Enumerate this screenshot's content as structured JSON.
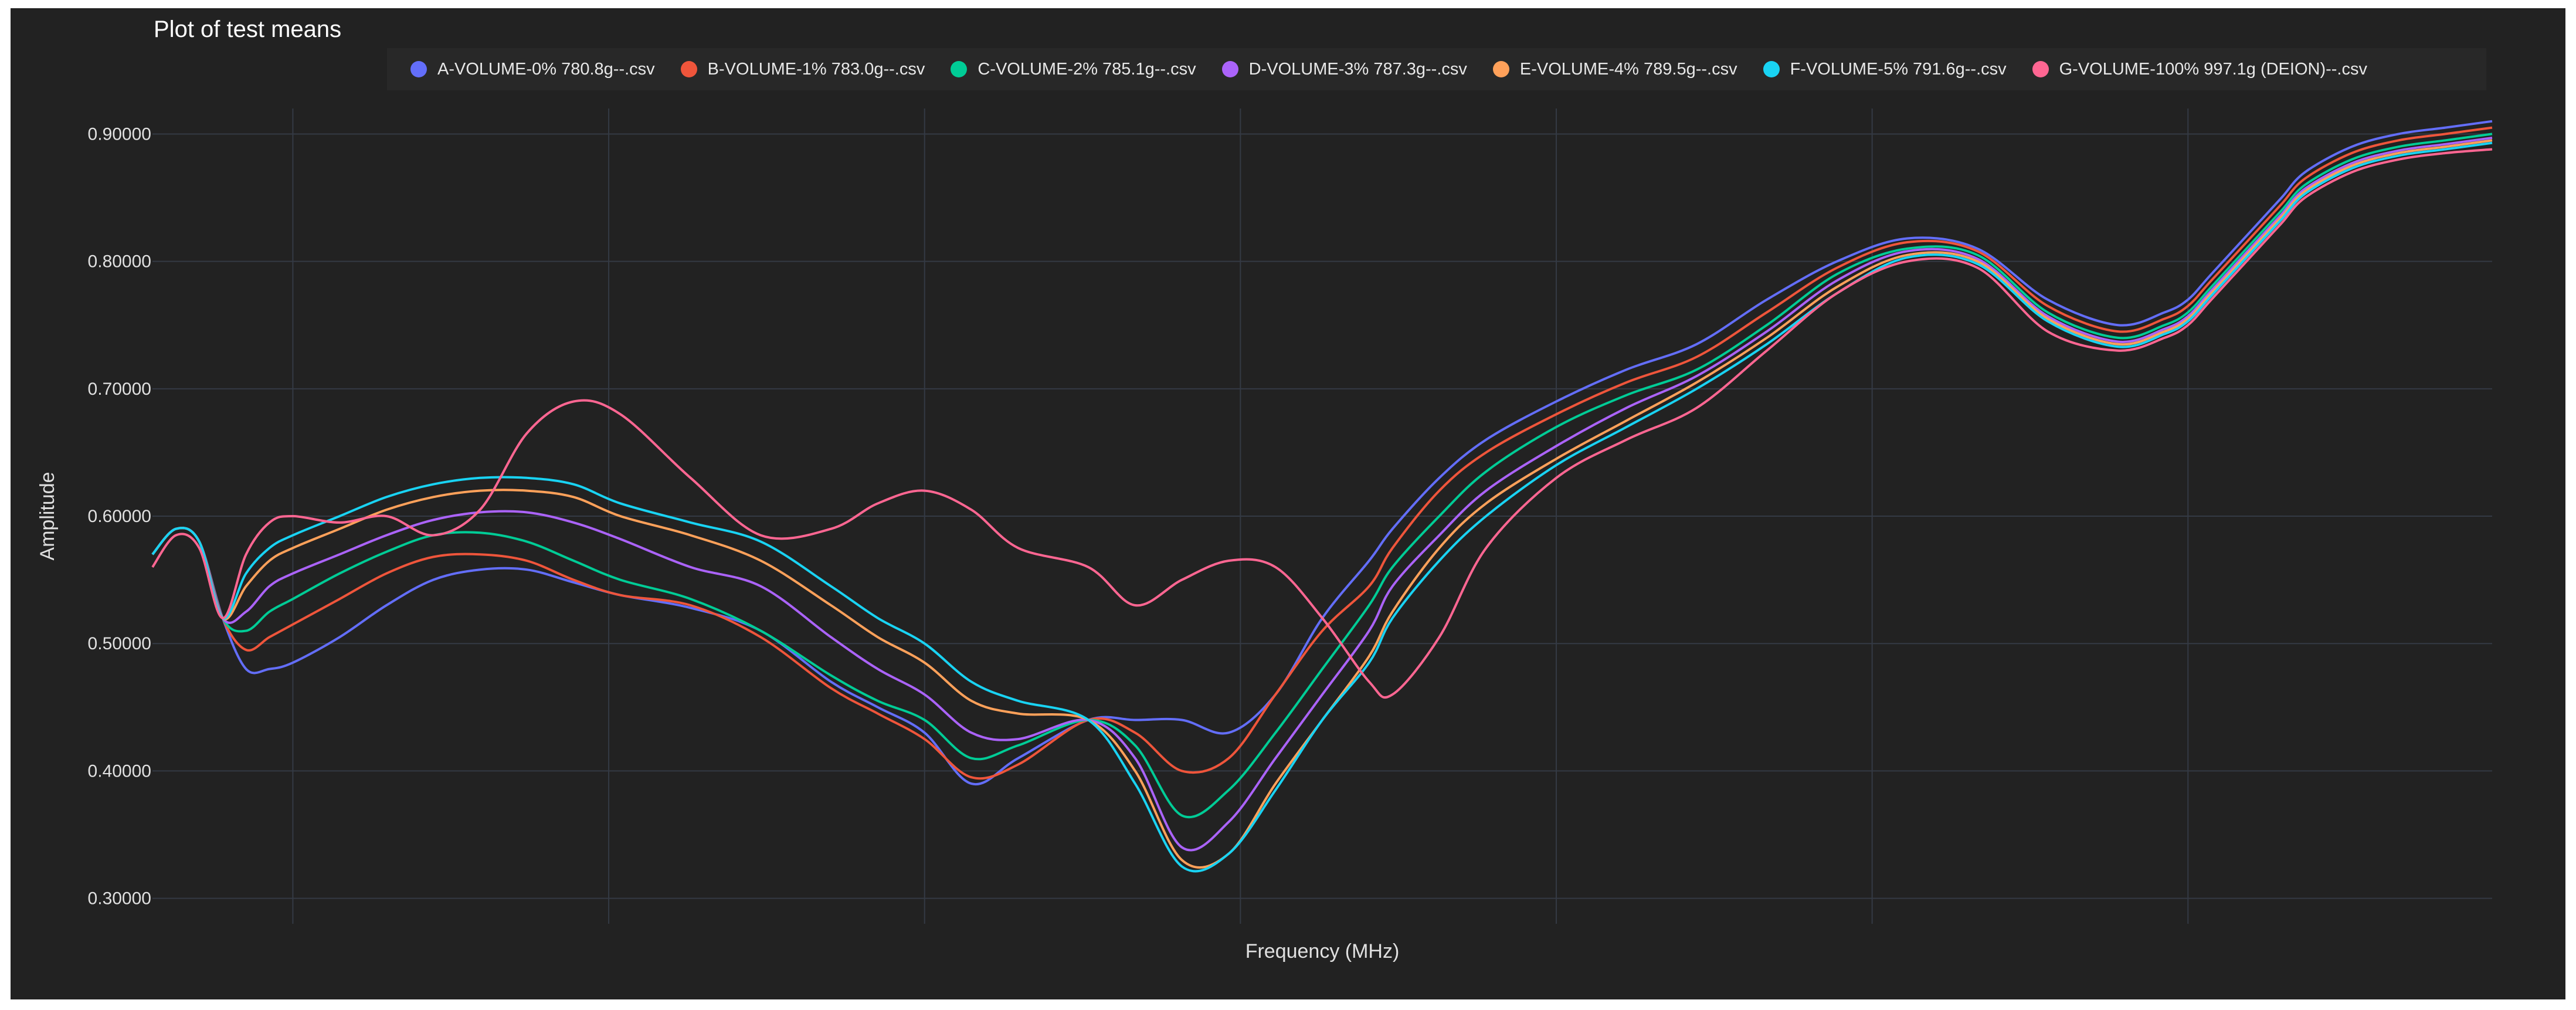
{
  "chart_data": {
    "type": "line",
    "title": "Plot of test means",
    "xlabel": "Frequency (MHz)",
    "ylabel": "Amplitude",
    "ylim": [
      0.28,
      0.92
    ],
    "yticks": [
      "0.30000",
      "0.40000",
      "0.50000",
      "0.60000",
      "0.70000",
      "0.80000",
      "0.90000"
    ],
    "ytick_values": [
      0.3,
      0.4,
      0.5,
      0.6,
      0.7,
      0.8,
      0.9
    ],
    "x_range": [
      0,
      100
    ],
    "x_gridlines": [
      6,
      19.5,
      33,
      46.5,
      60,
      73.5,
      87
    ],
    "grid": true,
    "legend_position": "top",
    "colors": {
      "background": "#222222",
      "grid": "#343a44",
      "text": "#e0e0e0"
    },
    "series": [
      {
        "name": "A-VOLUME-0% 780.8g--.csv",
        "color": "#636efa",
        "x": [
          0,
          1,
          2,
          3,
          4,
          5,
          6,
          8,
          10,
          12,
          14,
          16,
          18,
          20,
          23,
          26,
          29,
          31,
          33,
          35,
          37,
          40,
          42,
          44,
          46,
          48,
          50,
          52,
          53,
          55,
          57,
          60,
          63,
          66,
          69,
          72,
          75,
          78,
          81,
          84,
          86,
          87,
          88,
          90,
          91,
          92,
          94,
          96,
          98,
          100
        ],
        "y": [
          0.57,
          0.59,
          0.58,
          0.52,
          0.48,
          0.48,
          0.485,
          0.505,
          0.53,
          0.55,
          0.558,
          0.558,
          0.548,
          0.538,
          0.528,
          0.51,
          0.47,
          0.45,
          0.43,
          0.39,
          0.41,
          0.44,
          0.44,
          0.44,
          0.43,
          0.46,
          0.52,
          0.565,
          0.59,
          0.63,
          0.66,
          0.69,
          0.715,
          0.735,
          0.77,
          0.8,
          0.818,
          0.81,
          0.77,
          0.75,
          0.76,
          0.77,
          0.79,
          0.83,
          0.85,
          0.87,
          0.89,
          0.9,
          0.905,
          0.91
        ]
      },
      {
        "name": "B-VOLUME-1% 783.0g--.csv",
        "color": "#ef553b",
        "x": [
          0,
          1,
          2,
          3,
          4,
          5,
          6,
          8,
          10,
          12,
          14,
          16,
          18,
          20,
          23,
          26,
          29,
          31,
          33,
          35,
          37,
          40,
          42,
          44,
          46,
          48,
          50,
          52,
          53,
          55,
          57,
          60,
          63,
          66,
          69,
          72,
          75,
          78,
          81,
          84,
          86,
          87,
          88,
          90,
          91,
          92,
          94,
          96,
          98,
          100
        ],
        "y": [
          0.57,
          0.59,
          0.58,
          0.52,
          0.495,
          0.505,
          0.515,
          0.535,
          0.555,
          0.568,
          0.57,
          0.565,
          0.55,
          0.538,
          0.53,
          0.505,
          0.465,
          0.445,
          0.425,
          0.395,
          0.405,
          0.44,
          0.43,
          0.4,
          0.41,
          0.46,
          0.51,
          0.545,
          0.575,
          0.62,
          0.65,
          0.68,
          0.705,
          0.725,
          0.76,
          0.795,
          0.815,
          0.808,
          0.765,
          0.745,
          0.755,
          0.765,
          0.785,
          0.825,
          0.845,
          0.865,
          0.885,
          0.895,
          0.9,
          0.905
        ]
      },
      {
        "name": "C-VOLUME-2% 785.1g--.csv",
        "color": "#00cc96",
        "x": [
          0,
          1,
          2,
          3,
          4,
          5,
          6,
          8,
          10,
          12,
          14,
          16,
          18,
          20,
          23,
          26,
          29,
          31,
          33,
          35,
          37,
          40,
          42,
          44,
          46,
          48,
          50,
          52,
          53,
          55,
          57,
          60,
          63,
          66,
          69,
          72,
          75,
          78,
          81,
          84,
          86,
          87,
          88,
          90,
          91,
          92,
          94,
          96,
          98,
          100
        ],
        "y": [
          0.57,
          0.59,
          0.58,
          0.52,
          0.51,
          0.525,
          0.535,
          0.555,
          0.572,
          0.585,
          0.587,
          0.58,
          0.565,
          0.55,
          0.535,
          0.51,
          0.475,
          0.455,
          0.44,
          0.41,
          0.42,
          0.44,
          0.42,
          0.365,
          0.385,
          0.43,
          0.48,
          0.53,
          0.56,
          0.6,
          0.635,
          0.67,
          0.695,
          0.715,
          0.75,
          0.79,
          0.81,
          0.805,
          0.76,
          0.74,
          0.75,
          0.76,
          0.78,
          0.82,
          0.84,
          0.86,
          0.88,
          0.89,
          0.895,
          0.9
        ]
      },
      {
        "name": "D-VOLUME-3% 787.3g--.csv",
        "color": "#ab63fa",
        "x": [
          0,
          1,
          2,
          3,
          4,
          5,
          6,
          8,
          10,
          12,
          14,
          16,
          18,
          20,
          23,
          26,
          29,
          31,
          33,
          35,
          37,
          40,
          42,
          44,
          46,
          48,
          50,
          52,
          53,
          55,
          57,
          60,
          63,
          66,
          69,
          72,
          75,
          78,
          81,
          84,
          86,
          87,
          88,
          90,
          91,
          92,
          94,
          96,
          98,
          100
        ],
        "y": [
          0.57,
          0.59,
          0.58,
          0.52,
          0.525,
          0.545,
          0.555,
          0.57,
          0.585,
          0.597,
          0.603,
          0.603,
          0.595,
          0.582,
          0.56,
          0.545,
          0.505,
          0.48,
          0.46,
          0.43,
          0.425,
          0.44,
          0.41,
          0.34,
          0.36,
          0.41,
          0.46,
          0.51,
          0.545,
          0.585,
          0.62,
          0.655,
          0.685,
          0.71,
          0.745,
          0.785,
          0.808,
          0.802,
          0.757,
          0.737,
          0.747,
          0.757,
          0.777,
          0.817,
          0.837,
          0.857,
          0.877,
          0.887,
          0.892,
          0.897
        ]
      },
      {
        "name": "E-VOLUME-4% 789.5g--.csv",
        "color": "#ffa15a",
        "x": [
          0,
          1,
          2,
          3,
          4,
          5,
          6,
          8,
          10,
          12,
          14,
          16,
          18,
          20,
          23,
          26,
          29,
          31,
          33,
          35,
          37,
          40,
          42,
          44,
          46,
          48,
          50,
          52,
          53,
          55,
          57,
          60,
          63,
          66,
          69,
          72,
          75,
          78,
          81,
          84,
          86,
          87,
          88,
          90,
          91,
          92,
          94,
          96,
          98,
          100
        ],
        "y": [
          0.57,
          0.59,
          0.58,
          0.52,
          0.545,
          0.565,
          0.575,
          0.59,
          0.605,
          0.615,
          0.62,
          0.62,
          0.615,
          0.6,
          0.585,
          0.565,
          0.53,
          0.505,
          0.485,
          0.455,
          0.445,
          0.44,
          0.4,
          0.33,
          0.335,
          0.39,
          0.44,
          0.49,
          0.525,
          0.575,
          0.61,
          0.645,
          0.675,
          0.705,
          0.74,
          0.78,
          0.805,
          0.8,
          0.755,
          0.735,
          0.745,
          0.755,
          0.775,
          0.815,
          0.835,
          0.855,
          0.875,
          0.885,
          0.89,
          0.895
        ]
      },
      {
        "name": "F-VOLUME-5% 791.6g--.csv",
        "color": "#19d3f3",
        "x": [
          0,
          1,
          2,
          3,
          4,
          5,
          6,
          8,
          10,
          12,
          14,
          16,
          18,
          20,
          23,
          26,
          29,
          31,
          33,
          35,
          37,
          40,
          42,
          44,
          46,
          48,
          50,
          52,
          53,
          55,
          57,
          60,
          63,
          66,
          69,
          72,
          75,
          78,
          81,
          84,
          86,
          87,
          88,
          90,
          91,
          92,
          94,
          96,
          98,
          100
        ],
        "y": [
          0.57,
          0.59,
          0.58,
          0.52,
          0.555,
          0.575,
          0.585,
          0.6,
          0.615,
          0.625,
          0.63,
          0.63,
          0.625,
          0.61,
          0.595,
          0.58,
          0.545,
          0.52,
          0.5,
          0.47,
          0.455,
          0.44,
          0.39,
          0.325,
          0.335,
          0.385,
          0.44,
          0.485,
          0.52,
          0.565,
          0.6,
          0.64,
          0.67,
          0.7,
          0.735,
          0.775,
          0.803,
          0.798,
          0.753,
          0.733,
          0.743,
          0.753,
          0.773,
          0.813,
          0.833,
          0.853,
          0.873,
          0.883,
          0.888,
          0.893
        ]
      },
      {
        "name": "G-VOLUME-100% 997.1g (DEION)--.csv",
        "color": "#ff6692",
        "x": [
          0,
          1,
          2,
          3,
          4,
          5,
          6,
          8,
          10,
          12,
          14,
          16,
          18,
          20,
          23,
          26,
          29,
          31,
          33,
          35,
          37,
          40,
          42,
          44,
          46,
          48,
          50,
          52,
          53,
          55,
          57,
          60,
          63,
          66,
          69,
          72,
          75,
          78,
          81,
          84,
          86,
          87,
          88,
          90,
          91,
          92,
          94,
          96,
          98,
          100
        ],
        "y": [
          0.56,
          0.585,
          0.575,
          0.52,
          0.57,
          0.595,
          0.6,
          0.595,
          0.6,
          0.585,
          0.605,
          0.665,
          0.69,
          0.68,
          0.63,
          0.585,
          0.59,
          0.61,
          0.62,
          0.605,
          0.575,
          0.56,
          0.53,
          0.55,
          0.565,
          0.56,
          0.52,
          0.47,
          0.46,
          0.505,
          0.575,
          0.63,
          0.66,
          0.685,
          0.73,
          0.775,
          0.8,
          0.795,
          0.745,
          0.73,
          0.74,
          0.75,
          0.77,
          0.81,
          0.83,
          0.85,
          0.87,
          0.88,
          0.885,
          0.888
        ]
      }
    ]
  }
}
